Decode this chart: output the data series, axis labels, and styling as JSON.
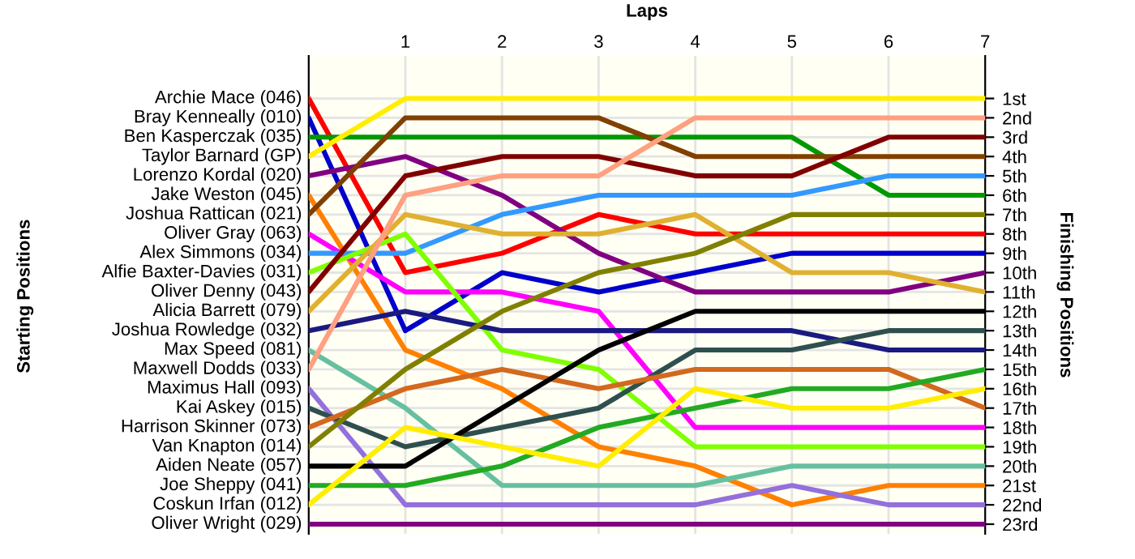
{
  "chart_data": {
    "type": "line",
    "xlabel": "Laps",
    "ylabel": "Finishing Positions",
    "annotations": [
      "Starting Positions"
    ],
    "x": [
      0,
      1,
      2,
      3,
      4,
      5,
      6,
      7
    ],
    "xlim": [
      0,
      7
    ],
    "xticks": [
      {
        "value": 0,
        "label": null
      },
      1,
      2,
      3,
      4,
      5,
      6,
      7
    ],
    "ylim": [
      23.5,
      -1.2
    ],
    "yticks": [
      {
        "value": 1,
        "label": "1st"
      },
      {
        "value": 2,
        "label": "2nd"
      },
      {
        "value": 3,
        "label": "3rd"
      },
      {
        "value": 4,
        "label": "4th"
      },
      {
        "value": 5,
        "label": "5th"
      },
      {
        "value": 6,
        "label": "6th"
      },
      {
        "value": 7,
        "label": "7th"
      },
      {
        "value": 8,
        "label": "8th"
      },
      {
        "value": 9,
        "label": "9th"
      },
      {
        "value": 10,
        "label": "10th"
      },
      {
        "value": 11,
        "label": "11th"
      },
      {
        "value": 12,
        "label": "12th"
      },
      {
        "value": 13,
        "label": "13th"
      },
      {
        "value": 14,
        "label": "14th"
      },
      {
        "value": 15,
        "label": "15th"
      },
      {
        "value": 16,
        "label": "16th"
      },
      {
        "value": 17,
        "label": "17th"
      },
      {
        "value": 18,
        "label": "18th"
      },
      {
        "value": 19,
        "label": "19th"
      },
      {
        "value": 20,
        "label": "20th"
      },
      {
        "value": 21,
        "label": "21st"
      },
      {
        "value": 22,
        "label": "22nd"
      },
      {
        "value": 23,
        "label": "23rd"
      }
    ],
    "grid": true,
    "legend": false,
    "marker": "none",
    "line_style": "solid",
    "series": [
      {
        "name": "Archie Mace (046)",
        "color": "#ff0000",
        "values": [
          1,
          10,
          9,
          7,
          8,
          8,
          8,
          8
        ]
      },
      {
        "name": "Bray Kenneally (010)",
        "color": "#0000cc",
        "values": [
          2,
          13,
          10,
          11,
          10,
          9,
          9,
          9
        ]
      },
      {
        "name": "Ben Kasperczak (035)",
        "color": "#009900",
        "values": [
          3,
          3,
          3,
          3,
          3,
          3,
          6,
          6
        ]
      },
      {
        "name": "Taylor Barnard (GP)",
        "color": "#ffee00",
        "values": [
          4,
          1,
          1,
          1,
          1,
          1,
          1,
          1
        ]
      },
      {
        "name": "Lorenzo Kordal (020)",
        "color": "#800080",
        "values": [
          5,
          4,
          6,
          9,
          11,
          11,
          11,
          10
        ]
      },
      {
        "name": "Jake Weston (045)",
        "color": "#ff8000",
        "values": [
          6,
          14,
          16,
          19,
          20,
          22,
          21,
          21
        ]
      },
      {
        "name": "Joshua Rattican (021)",
        "color": "#804000",
        "values": [
          7,
          2,
          2,
          2,
          4,
          4,
          4,
          4
        ]
      },
      {
        "name": "Oliver Gray (063)",
        "color": "#ff00ff",
        "values": [
          8,
          11,
          11,
          12,
          18,
          18,
          18,
          18
        ]
      },
      {
        "name": "Alex Simmons (034)",
        "color": "#3399ff",
        "values": [
          9,
          9,
          7,
          6,
          6,
          6,
          5,
          5
        ]
      },
      {
        "name": "Alfie Baxter-Davies (031)",
        "color": "#80ff00",
        "values": [
          10,
          8,
          14,
          15,
          19,
          19,
          19,
          19
        ]
      },
      {
        "name": "Oliver Denny (043)",
        "color": "#800000",
        "values": [
          11,
          5,
          4,
          4,
          5,
          5,
          3,
          3
        ]
      },
      {
        "name": "Alicia Barrett (079)",
        "color": "#e0b030",
        "values": [
          12,
          7,
          8,
          8,
          7,
          10,
          10,
          11
        ]
      },
      {
        "name": "Joshua Rowledge (032)",
        "color": "#1a1a80",
        "values": [
          13,
          12,
          13,
          13,
          13,
          13,
          14,
          14
        ]
      },
      {
        "name": "Max Speed (081)",
        "color": "#66c0a0",
        "values": [
          14,
          17,
          21,
          21,
          21,
          20,
          20,
          20
        ]
      },
      {
        "name": "Maxwell Dodds (033)",
        "color": "#ffa080",
        "values": [
          15,
          6,
          5,
          5,
          2,
          2,
          2,
          2
        ]
      },
      {
        "name": "Maximus Hall (093)",
        "color": "#9370db",
        "values": [
          16,
          22,
          22,
          22,
          22,
          21,
          22,
          22
        ]
      },
      {
        "name": "Kai Askey (015)",
        "color": "#2f4f4f",
        "values": [
          17,
          19,
          18,
          17,
          14,
          14,
          13,
          13
        ]
      },
      {
        "name": "Harrison Skinner (073)",
        "color": "#d2691e",
        "values": [
          18,
          16,
          15,
          16,
          15,
          15,
          15,
          17
        ]
      },
      {
        "name": "Van Knapton (014)",
        "color": "#808000",
        "values": [
          19,
          15,
          12,
          10,
          9,
          7,
          7,
          7
        ]
      },
      {
        "name": "Aiden Neate (057)",
        "color": "#000000",
        "values": [
          20,
          20,
          17,
          14,
          12,
          12,
          12,
          12
        ]
      },
      {
        "name": "Joe Sheppy (041)",
        "color": "#22aa22",
        "values": [
          21,
          21,
          20,
          18,
          17,
          16,
          16,
          15
        ]
      },
      {
        "name": "Coskun Irfan (012)",
        "color": "#ffee00",
        "values": [
          22,
          18,
          19,
          20,
          16,
          17,
          17,
          16
        ]
      },
      {
        "name": "Oliver Wright (029)",
        "color": "#800080",
        "values": [
          23,
          23,
          23,
          23,
          23,
          23,
          23,
          23
        ]
      }
    ]
  }
}
